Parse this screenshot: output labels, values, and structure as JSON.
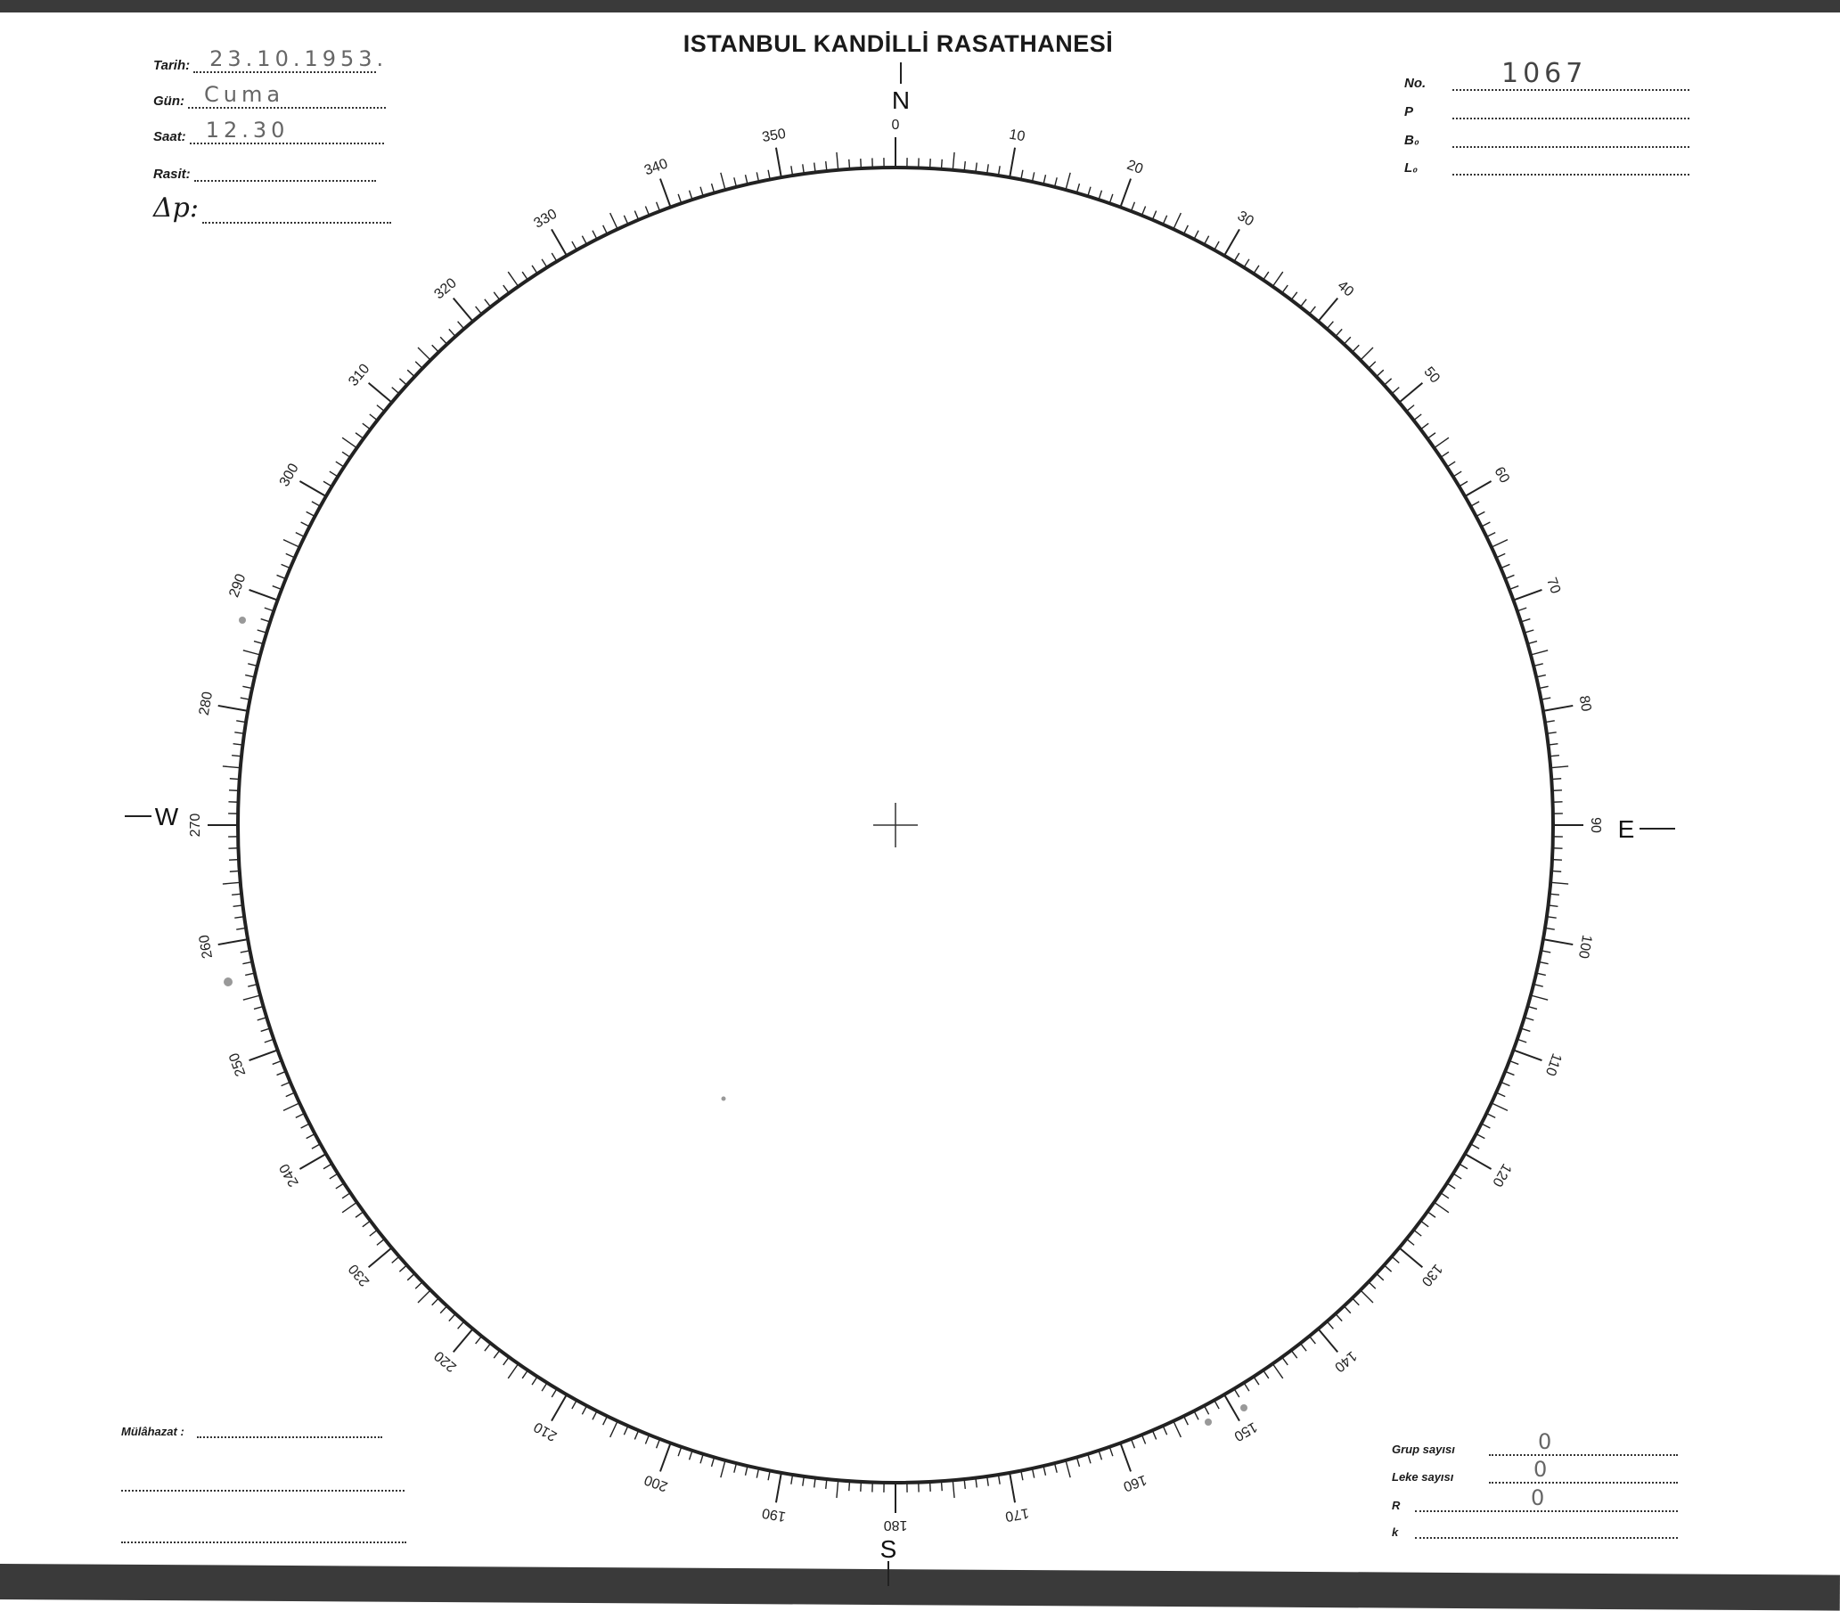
{
  "header": {
    "title": "ISTANBUL KANDİLLİ RASATHANESİ"
  },
  "left_fields": [
    {
      "label": "Tarih:",
      "value": "23.10.1953."
    },
    {
      "label": "Gün:",
      "value": "Cuma"
    },
    {
      "label": "Saat:",
      "value": "12.30"
    },
    {
      "label": "Rasit:",
      "value": ""
    },
    {
      "label": "Δp:",
      "value": ""
    }
  ],
  "right_fields": [
    {
      "label": "No.",
      "value": "1067"
    },
    {
      "label": "P",
      "value": ""
    },
    {
      "label": "B₀",
      "value": ""
    },
    {
      "label": "L₀",
      "value": ""
    }
  ],
  "remarks": {
    "label": "Mülâhazat :",
    "value": ""
  },
  "counts": [
    {
      "label": "Grup sayısı",
      "value": "0"
    },
    {
      "label": "Leke sayısı",
      "value": "0"
    },
    {
      "label": "R",
      "value": "0"
    },
    {
      "label": "k",
      "value": ""
    }
  ],
  "compass": {
    "cardinals": {
      "north": "N",
      "east": "E",
      "south": "S",
      "west": "W"
    },
    "scale_labels": [
      "0",
      "10",
      "20",
      "30",
      "40",
      "50",
      "60",
      "70",
      "80",
      "90",
      "100",
      "110",
      "120",
      "130",
      "140",
      "150",
      "160",
      "170",
      "180",
      "190",
      "200",
      "210",
      "220",
      "230",
      "240",
      "250",
      "260",
      "270",
      "280",
      "290",
      "300",
      "310",
      "320",
      "330",
      "340",
      "350"
    ]
  },
  "colors": {
    "ink": "#1a1a1a",
    "border": "#3a3a3a",
    "handwriting": "#555555"
  }
}
